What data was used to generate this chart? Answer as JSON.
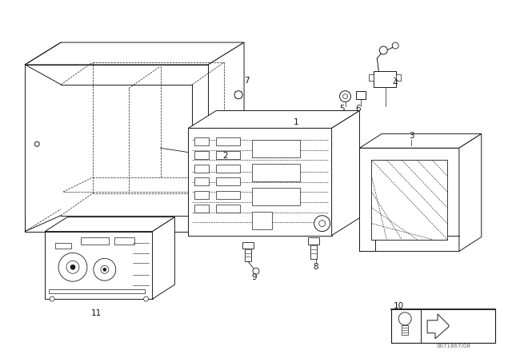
{
  "bg_color": "#ffffff",
  "line_color": "#1a1a1a",
  "text_color": "#111111",
  "dot_color": "#333333",
  "fig_width": 6.4,
  "fig_height": 4.48,
  "dpi": 100,
  "part_number_text": "0071867/08"
}
